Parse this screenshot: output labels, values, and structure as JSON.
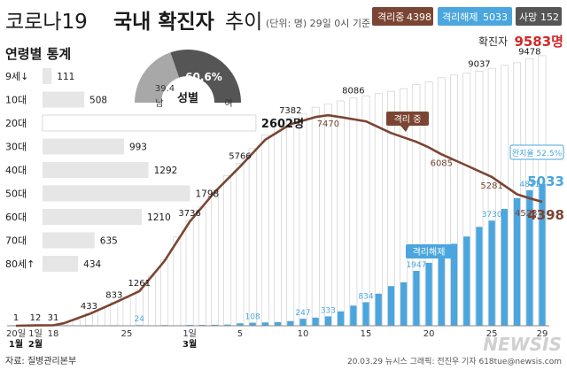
{
  "header": {
    "title_prefix": "코로나19",
    "title_bold": "국내 확진자",
    "title_suffix": "추이",
    "unit_note": "(단위: 명) 29일 0시 기준",
    "badge_isolated_label": "격리중",
    "badge_isolated_value": "4398",
    "badge_released_label": "격리해제",
    "badge_released_value": "5033",
    "badge_death_label": "사망",
    "badge_death_value": "152"
  },
  "total": {
    "label": "확진자",
    "value": "9583명"
  },
  "age_panel": {
    "title": "연령별 통계"
  },
  "gender": {
    "title": "성별",
    "female_label": "여",
    "female_value": "60.6",
    "male_label": "남",
    "male_value": "39.4"
  },
  "annotations": {
    "isolated_label": "격리 중",
    "released_label": "격리해제",
    "completion_rate": "완치율 52.5%"
  },
  "footer": {
    "source": "자료: 질병관리본부",
    "credit": "20.03.29  뉴시스 그래픽: 전진우 기자 618tue@newsis.com",
    "watermark": "NEWSIS"
  },
  "colors": {
    "isolated": "#7b4533",
    "released": "#4aa6de",
    "death": "#555555",
    "total_red": "#d22828",
    "age_bar": "#e6e6e6"
  },
  "chart_data": [
    {
      "type": "bar",
      "title": "연령별 통계",
      "categories": [
        "9세↓",
        "10대",
        "20대",
        "30대",
        "40대",
        "50대",
        "60대",
        "70대",
        "80세↑"
      ],
      "values": [
        111,
        508,
        2602,
        993,
        1292,
        1798,
        1210,
        635,
        434
      ],
      "value_labels": [
        "111",
        "508",
        "2602명",
        "993",
        "1292",
        "1798",
        "1210",
        "635",
        "434"
      ],
      "xlim": [
        0,
        2700
      ]
    },
    {
      "type": "pie",
      "title": "성별",
      "labels": [
        "여",
        "남"
      ],
      "values": [
        60.6,
        39.4
      ],
      "unit": "%"
    },
    {
      "type": "bar",
      "x_axis": "date",
      "date_range": [
        "2020-01-20",
        "2020-03-29"
      ],
      "tick_labels": [
        {
          "date": "2020-01-20",
          "label": "20일"
        },
        {
          "date": "2020-02-01",
          "label": "1일"
        },
        {
          "date": "2020-02-18",
          "label": "18"
        },
        {
          "date": "2020-02-25",
          "label": "25"
        },
        {
          "date": "2020-03-01",
          "label": "1일"
        },
        {
          "date": "2020-03-05",
          "label": "5"
        },
        {
          "date": "2020-03-10",
          "label": "10"
        },
        {
          "date": "2020-03-15",
          "label": "15"
        },
        {
          "date": "2020-03-20",
          "label": "20"
        },
        {
          "date": "2020-03-25",
          "label": "25"
        },
        {
          "date": "2020-03-29",
          "label": "29"
        }
      ],
      "month_labels": [
        {
          "date": "2020-01-20",
          "label": "1월"
        },
        {
          "date": "2020-02-01",
          "label": "2월"
        },
        {
          "date": "2020-03-01",
          "label": "3월"
        }
      ],
      "series": [
        {
          "name": "확진자",
          "style": "white bars",
          "points": [
            [
              "2020-01-20",
              1
            ],
            [
              "2020-02-01",
              12
            ],
            [
              "2020-02-18",
              31
            ],
            [
              "2020-02-20",
              104
            ],
            [
              "2020-02-21",
              204
            ],
            [
              "2020-02-22",
              433
            ],
            [
              "2020-02-23",
              602
            ],
            [
              "2020-02-24",
              833
            ],
            [
              "2020-02-25",
              977
            ],
            [
              "2020-02-26",
              1261
            ],
            [
              "2020-02-27",
              1766
            ],
            [
              "2020-02-28",
              2337
            ],
            [
              "2020-02-29",
              3150
            ],
            [
              "2020-03-01",
              3736
            ],
            [
              "2020-03-02",
              4212
            ],
            [
              "2020-03-03",
              4812
            ],
            [
              "2020-03-04",
              5328
            ],
            [
              "2020-03-05",
              5766
            ],
            [
              "2020-03-06",
              6284
            ],
            [
              "2020-03-07",
              6767
            ],
            [
              "2020-03-08",
              7134
            ],
            [
              "2020-03-09",
              7382
            ],
            [
              "2020-03-10",
              7513
            ],
            [
              "2020-03-11",
              7755
            ],
            [
              "2020-03-12",
              7869
            ],
            [
              "2020-03-13",
              7979
            ],
            [
              "2020-03-14",
              8086
            ],
            [
              "2020-03-15",
              8162
            ],
            [
              "2020-03-16",
              8236
            ],
            [
              "2020-03-17",
              8320
            ],
            [
              "2020-03-18",
              8413
            ],
            [
              "2020-03-19",
              8565
            ],
            [
              "2020-03-20",
              8652
            ],
            [
              "2020-03-21",
              8799
            ],
            [
              "2020-03-22",
              8897
            ],
            [
              "2020-03-23",
              8961
            ],
            [
              "2020-03-24",
              9037
            ],
            [
              "2020-03-25",
              9137
            ],
            [
              "2020-03-26",
              9241
            ],
            [
              "2020-03-27",
              9332
            ],
            [
              "2020-03-28",
              9478
            ],
            [
              "2020-03-29",
              9583
            ]
          ],
          "labels": [
            [
              "2020-01-20",
              "1"
            ],
            [
              "2020-02-01",
              "12"
            ],
            [
              "2020-02-18",
              "31"
            ],
            [
              "2020-02-22",
              "433"
            ],
            [
              "2020-02-24",
              "833"
            ],
            [
              "2020-02-26",
              "1261"
            ],
            [
              "2020-03-01",
              "3736"
            ],
            [
              "2020-03-05",
              "5766"
            ],
            [
              "2020-03-09",
              "7382"
            ],
            [
              "2020-03-14",
              "8086"
            ],
            [
              "2020-03-24",
              "9037"
            ],
            [
              "2020-03-28",
              "9478"
            ]
          ]
        },
        {
          "name": "격리해제",
          "style": "blue bars",
          "points": [
            [
              "2020-02-20",
              16
            ],
            [
              "2020-02-22",
              18
            ],
            [
              "2020-02-24",
              18
            ],
            [
              "2020-02-26",
              24
            ],
            [
              "2020-02-28",
              24
            ],
            [
              "2020-03-01",
              30
            ],
            [
              "2020-03-02",
              30
            ],
            [
              "2020-03-03",
              34
            ],
            [
              "2020-03-04",
              41
            ],
            [
              "2020-03-05",
              88
            ],
            [
              "2020-03-06",
              108
            ],
            [
              "2020-03-07",
              118
            ],
            [
              "2020-03-08",
              130
            ],
            [
              "2020-03-09",
              166
            ],
            [
              "2020-03-10",
              247
            ],
            [
              "2020-03-11",
              288
            ],
            [
              "2020-03-12",
              333
            ],
            [
              "2020-03-13",
              510
            ],
            [
              "2020-03-14",
              714
            ],
            [
              "2020-03-15",
              834
            ],
            [
              "2020-03-16",
              1137
            ],
            [
              "2020-03-17",
              1407
            ],
            [
              "2020-03-18",
              1540
            ],
            [
              "2020-03-19",
              1947
            ],
            [
              "2020-03-20",
              2233
            ],
            [
              "2020-03-21",
              2612
            ],
            [
              "2020-03-22",
              2909
            ],
            [
              "2020-03-23",
              3166
            ],
            [
              "2020-03-24",
              3507
            ],
            [
              "2020-03-25",
              3730
            ],
            [
              "2020-03-26",
              4144
            ],
            [
              "2020-03-27",
              4528
            ],
            [
              "2020-03-28",
              4811
            ],
            [
              "2020-03-29",
              5033
            ]
          ],
          "labels": [
            [
              "2020-02-26",
              "24"
            ],
            [
              "2020-03-06",
              "108"
            ],
            [
              "2020-03-10",
              "247"
            ],
            [
              "2020-03-12",
              "333"
            ],
            [
              "2020-03-15",
              "834"
            ],
            [
              "2020-03-19",
              "1947"
            ],
            [
              "2020-03-25",
              "3730"
            ],
            [
              "2020-03-28",
              "4811"
            ],
            [
              "2020-03-29",
              "5033"
            ]
          ]
        },
        {
          "name": "격리 중",
          "type": "line",
          "points": [
            [
              "2020-01-20",
              1
            ],
            [
              "2020-02-01",
              12
            ],
            [
              "2020-02-18",
              15
            ],
            [
              "2020-02-20",
              88
            ],
            [
              "2020-02-22",
              413
            ],
            [
              "2020-02-24",
              807
            ],
            [
              "2020-02-26",
              1225
            ],
            [
              "2020-02-28",
              2300
            ],
            [
              "2020-03-01",
              3689
            ],
            [
              "2020-03-03",
              4750
            ],
            [
              "2020-03-05",
              5643
            ],
            [
              "2020-03-07",
              6600
            ],
            [
              "2020-03-09",
              7149
            ],
            [
              "2020-03-11",
              7407
            ],
            [
              "2020-03-12",
              7470
            ],
            [
              "2020-03-13",
              7402
            ],
            [
              "2020-03-15",
              7253
            ],
            [
              "2020-03-17",
              6838
            ],
            [
              "2020-03-19",
              6527
            ],
            [
              "2020-03-20",
              6325
            ],
            [
              "2020-03-21",
              6085
            ],
            [
              "2020-03-23",
              5684
            ],
            [
              "2020-03-25",
              5281
            ],
            [
              "2020-03-27",
              4665
            ],
            [
              "2020-03-28",
              4523
            ],
            [
              "2020-03-29",
              4398
            ]
          ],
          "labels": [
            [
              "2020-03-12",
              "7470"
            ],
            [
              "2020-03-21",
              "6085"
            ],
            [
              "2020-03-25",
              "5281"
            ],
            [
              "2020-03-28",
              "4523"
            ],
            [
              "2020-03-29",
              "4398"
            ]
          ]
        }
      ],
      "ylim": [
        0,
        9800
      ]
    }
  ]
}
